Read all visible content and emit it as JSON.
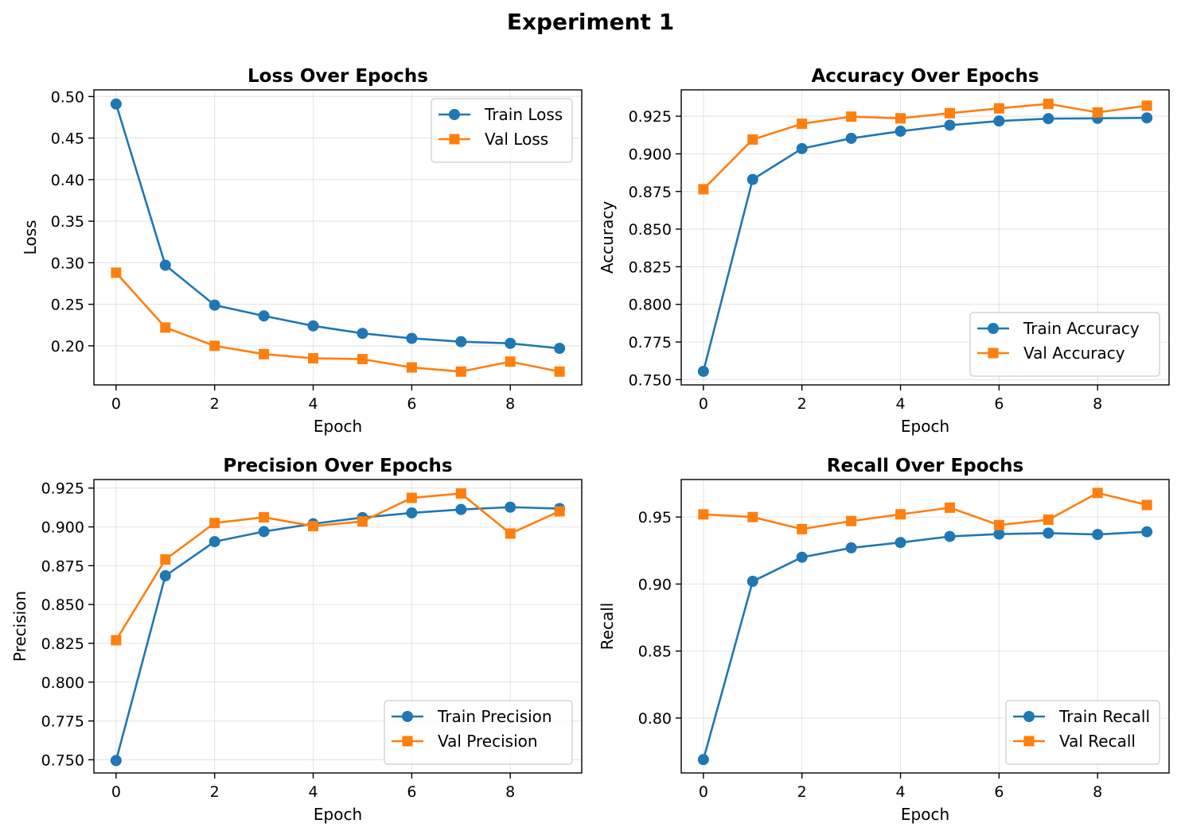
{
  "figure": {
    "title": "Experiment 1"
  },
  "chart_data": [
    {
      "type": "line",
      "title": "Loss Over Epochs",
      "xlabel": "Epoch",
      "ylabel": "Loss",
      "x": [
        0,
        1,
        2,
        3,
        4,
        5,
        6,
        7,
        8,
        9
      ],
      "xlim": [
        -0.45,
        9.45
      ],
      "ylim": [
        0.153,
        0.508
      ],
      "xticks": [
        0,
        2,
        4,
        6,
        8
      ],
      "yticks": [
        0.2,
        0.25,
        0.3,
        0.35,
        0.4,
        0.45,
        0.5
      ],
      "ytick_decimals": 2,
      "grid": true,
      "legend": "top-right",
      "series": [
        {
          "name": "Train Loss",
          "color": "#1f77b4",
          "marker": "circle",
          "values": [
            0.491,
            0.297,
            0.249,
            0.236,
            0.224,
            0.215,
            0.209,
            0.205,
            0.203,
            0.197
          ]
        },
        {
          "name": "Val Loss",
          "color": "#ff7f0e",
          "marker": "square",
          "values": [
            0.288,
            0.222,
            0.2,
            0.19,
            0.185,
            0.184,
            0.174,
            0.169,
            0.181,
            0.169
          ]
        }
      ]
    },
    {
      "type": "line",
      "title": "Accuracy Over Epochs",
      "xlabel": "Epoch",
      "ylabel": "Accuracy",
      "x": [
        0,
        1,
        2,
        3,
        4,
        5,
        6,
        7,
        8,
        9
      ],
      "xlim": [
        -0.45,
        9.45
      ],
      "ylim": [
        0.7465,
        0.9425
      ],
      "xticks": [
        0,
        2,
        4,
        6,
        8
      ],
      "yticks": [
        0.75,
        0.775,
        0.8,
        0.825,
        0.85,
        0.875,
        0.9,
        0.925
      ],
      "ytick_decimals": 3,
      "grid": true,
      "legend": "bottom-right",
      "series": [
        {
          "name": "Train Accuracy",
          "color": "#1f77b4",
          "marker": "circle",
          "values": [
            0.7555,
            0.883,
            0.9035,
            0.9103,
            0.915,
            0.919,
            0.9218,
            0.9234,
            0.9236,
            0.9239
          ]
        },
        {
          "name": "Val Accuracy",
          "color": "#ff7f0e",
          "marker": "square",
          "values": [
            0.8765,
            0.9095,
            0.92,
            0.9247,
            0.9236,
            0.927,
            0.9302,
            0.9332,
            0.9275,
            0.932
          ]
        }
      ]
    },
    {
      "type": "line",
      "title": "Precision Over Epochs",
      "xlabel": "Epoch",
      "ylabel": "Precision",
      "x": [
        0,
        1,
        2,
        3,
        4,
        5,
        6,
        7,
        8,
        9
      ],
      "xlim": [
        -0.45,
        9.45
      ],
      "ylim": [
        0.7415,
        0.9305
      ],
      "xticks": [
        0,
        2,
        4,
        6,
        8
      ],
      "yticks": [
        0.75,
        0.775,
        0.8,
        0.825,
        0.85,
        0.875,
        0.9,
        0.925
      ],
      "ytick_decimals": 3,
      "grid": true,
      "legend": "bottom-right",
      "series": [
        {
          "name": "Train Precision",
          "color": "#1f77b4",
          "marker": "circle",
          "values": [
            0.7495,
            0.8685,
            0.8905,
            0.897,
            0.902,
            0.906,
            0.909,
            0.9112,
            0.9127,
            0.9118
          ]
        },
        {
          "name": "Val Precision",
          "color": "#ff7f0e",
          "marker": "square",
          "values": [
            0.827,
            0.879,
            0.9025,
            0.9062,
            0.9005,
            0.9035,
            0.9187,
            0.9215,
            0.8957,
            0.91
          ]
        }
      ]
    },
    {
      "type": "line",
      "title": "Recall Over Epochs",
      "xlabel": "Epoch",
      "ylabel": "Recall",
      "x": [
        0,
        1,
        2,
        3,
        4,
        5,
        6,
        7,
        8,
        9
      ],
      "xlim": [
        -0.45,
        9.45
      ],
      "ylim": [
        0.759,
        0.978
      ],
      "xticks": [
        0,
        2,
        4,
        6,
        8
      ],
      "yticks": [
        0.8,
        0.85,
        0.9,
        0.95
      ],
      "ytick_decimals": 2,
      "grid": true,
      "legend": "bottom-right",
      "series": [
        {
          "name": "Train Recall",
          "color": "#1f77b4",
          "marker": "circle",
          "values": [
            0.769,
            0.902,
            0.92,
            0.927,
            0.931,
            0.9355,
            0.9373,
            0.938,
            0.937,
            0.939
          ]
        },
        {
          "name": "Val Recall",
          "color": "#ff7f0e",
          "marker": "square",
          "values": [
            0.952,
            0.95,
            0.941,
            0.947,
            0.952,
            0.957,
            0.944,
            0.948,
            0.968,
            0.959
          ]
        }
      ]
    }
  ]
}
